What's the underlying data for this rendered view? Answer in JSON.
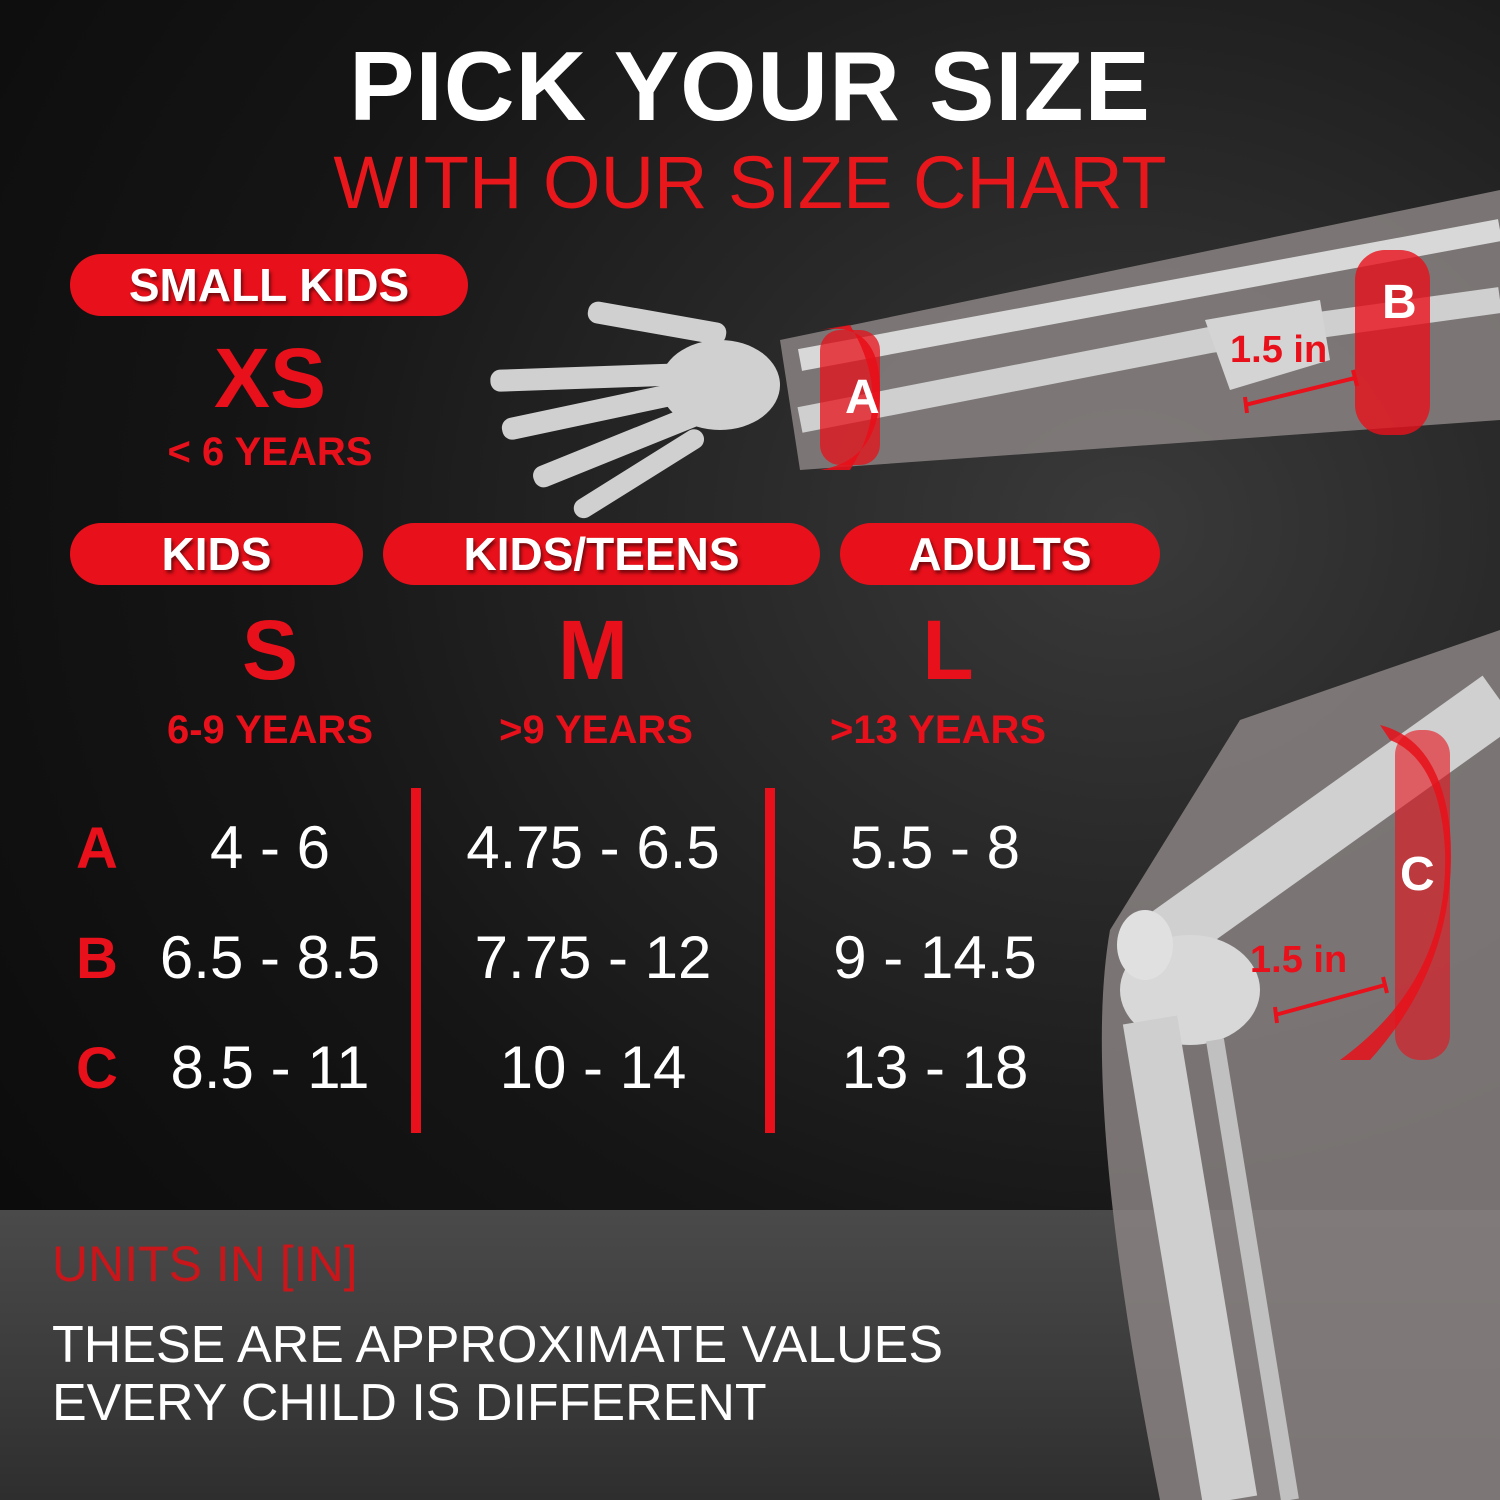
{
  "header": {
    "title": "PICK YOUR SIZE",
    "subtitle": "WITH OUR SIZE CHART"
  },
  "sizes": [
    {
      "group": "SMALL KIDS",
      "size": "XS",
      "age": "< 6 YEARS"
    },
    {
      "group": "KIDS",
      "size": "S",
      "age": "6-9 YEARS"
    },
    {
      "group": "KIDS/TEENS",
      "size": "M",
      "age": ">9 YEARS"
    },
    {
      "group": "ADULTS",
      "size": "L",
      "age": ">13 YEARS"
    }
  ],
  "table": {
    "rows": [
      {
        "label": "A",
        "values": [
          "4 - 6",
          "4.75 - 6.5",
          "5.5 - 8"
        ]
      },
      {
        "label": "B",
        "values": [
          "6.5 - 8.5",
          "7.75 - 12",
          "9 - 14.5"
        ]
      },
      {
        "label": "C",
        "values": [
          "8.5 - 11",
          "10 - 14",
          "13 - 18"
        ]
      }
    ]
  },
  "illustration": {
    "band_a": "A",
    "band_b": "B",
    "band_c": "C",
    "arm_measure": "1.5 in",
    "knee_measure": "1.5 in"
  },
  "footer": {
    "units": "UNITS IN [IN]",
    "note_line1": "THESE ARE APPROXIMATE VALUES",
    "note_line2": "EVERY CHILD IS DIFFERENT"
  },
  "colors": {
    "accent": "#e8101a",
    "background": "#0b0b0b",
    "text": "#ffffff"
  }
}
